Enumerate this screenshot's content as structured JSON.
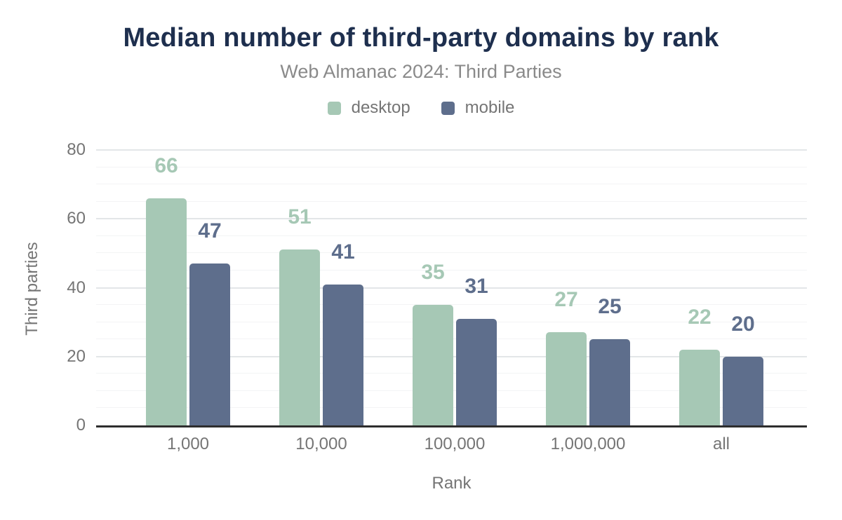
{
  "chart_data": {
    "type": "bar",
    "title": "Median number of third-party domains by rank",
    "subtitle": "Web Almanac 2024: Third Parties",
    "categories": [
      "1,000",
      "10,000",
      "100,000",
      "1,000,000",
      "all"
    ],
    "series": [
      {
        "name": "desktop",
        "color": "#a6c8b5",
        "values": [
          66,
          51,
          35,
          27,
          22
        ]
      },
      {
        "name": "mobile",
        "color": "#5e6e8c",
        "values": [
          47,
          41,
          31,
          25,
          20
        ]
      }
    ],
    "xlabel": "Rank",
    "ylabel": "Third parties",
    "ylim": [
      0,
      80
    ],
    "yticks": [
      0,
      20,
      40,
      60,
      80
    ],
    "minor_grid_step": 5,
    "grid": true,
    "legend_position": "top",
    "value_labels": true,
    "colors": {
      "background": "#ffffff",
      "title": "#1e2f4e",
      "subtitle": "#8a8a8a",
      "axis_text": "#757575",
      "major_grid": "#e3e6e8",
      "minor_grid": "#f3f4f5",
      "baseline": "#2e2e2e"
    }
  }
}
